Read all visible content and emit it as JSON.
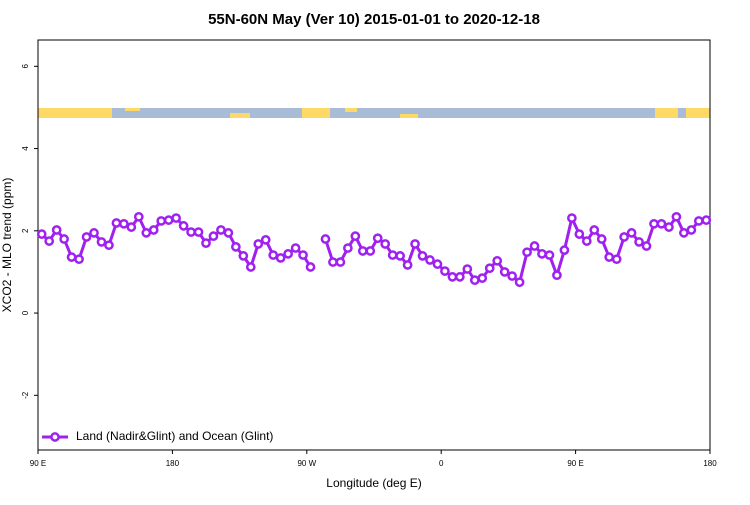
{
  "chart_data": {
    "type": "line",
    "title": "55N-60N May (Ver 10)   2015-01-01 to 2020-12-18",
    "x_label": "Longitude (deg E)",
    "y_label": "XCO2 - MLO trend (ppm)",
    "xlim": [
      90,
      540
    ],
    "ylim": [
      -3.33,
      6.64
    ],
    "xticks": [
      {
        "value": 90,
        "label": "90 E"
      },
      180,
      {
        "value": 270,
        "label": "90 W"
      },
      {
        "value": 360,
        "label": "0"
      },
      {
        "value": 450,
        "label": "90 E"
      },
      {
        "value": 540,
        "label": "180"
      }
    ],
    "yticks": [
      -2,
      0,
      2,
      4,
      6
    ],
    "legend": "bottom-left",
    "series": [
      {
        "name": "Land (Nadir&Glint) and Ocean (Glint)",
        "color": "#a020f0",
        "x": [
          92.5,
          97.5,
          102.5,
          107.5,
          112.5,
          117.5,
          122.5,
          127.5,
          132.5,
          137.5,
          142.5,
          147.5,
          152.5,
          157.5,
          162.5,
          167.5,
          172.5,
          177.5,
          182.5,
          187.5,
          192.5,
          197.5,
          202.5,
          207.5,
          212.5,
          217.5,
          222.5,
          227.5,
          232.5,
          237.5,
          242.5,
          247.5,
          252.5,
          257.5,
          262.5,
          267.5,
          272.5,
          277.5,
          282.5,
          287.5,
          292.5,
          297.5,
          302.5,
          307.5,
          312.5,
          317.5,
          322.5,
          327.5,
          332.5,
          337.5,
          342.5,
          347.5,
          352.5,
          357.5,
          362.5,
          367.5,
          372.5,
          377.5,
          382.5,
          387.5,
          392.5,
          397.5,
          402.5,
          407.5,
          412.5,
          417.5,
          422.5,
          427.5,
          432.5,
          437.5,
          442.5,
          447.5,
          452.5,
          457.5,
          462.5,
          467.5,
          472.5,
          477.5,
          482.5,
          487.5,
          492.5,
          497.5,
          502.5,
          507.5,
          512.5,
          517.5,
          522.5,
          527.5,
          532.5,
          537.5
        ],
        "values": [
          1.92,
          1.75,
          2.02,
          1.8,
          1.36,
          1.31,
          1.85,
          1.95,
          1.73,
          1.65,
          2.19,
          2.17,
          2.09,
          2.34,
          1.95,
          2.02,
          2.24,
          2.26,
          2.31,
          2.12,
          1.97,
          1.97,
          1.7,
          1.87,
          2.02,
          1.95,
          1.61,
          1.39,
          1.12,
          1.68,
          1.78,
          1.41,
          1.34,
          1.44,
          1.58,
          1.41,
          1.12,
          null,
          1.8,
          1.24,
          1.24,
          1.58,
          1.87,
          1.51,
          1.51,
          1.82,
          1.68,
          1.41,
          1.39,
          1.17,
          1.68,
          1.39,
          1.29,
          1.19,
          1.02,
          0.88,
          0.88,
          1.07,
          0.8,
          0.85,
          1.09,
          1.27,
          1.0,
          0.9,
          0.75,
          1.48,
          1.63,
          1.44,
          1.41,
          0.92,
          1.53,
          2.31,
          1.92,
          1.75,
          2.02,
          1.8,
          1.36,
          1.31,
          1.85,
          1.95,
          1.73,
          1.63,
          2.17,
          2.17,
          2.09,
          2.34,
          1.95,
          2.02,
          2.24,
          2.26
        ]
      }
    ]
  }
}
